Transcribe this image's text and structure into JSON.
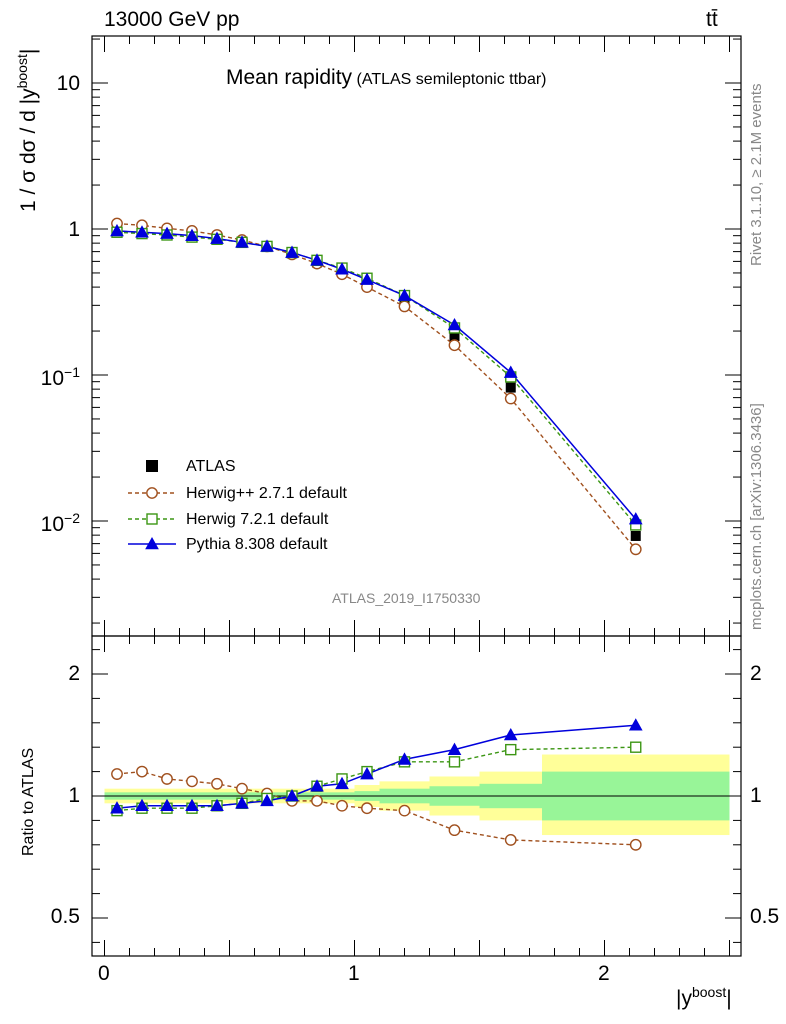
{
  "header": {
    "energy_label": "13000 GeV pp",
    "process_label": "tt̄"
  },
  "right_labels": {
    "rivet": "Rivet 3.1.10, ≥ 2.1M events",
    "source": "mcplots.cern.ch [arXiv:1306.3436]"
  },
  "main_title": {
    "title": "Mean rapidity",
    "subtitle": "(ATLAS semileptonic ttbar)"
  },
  "analysis_id": "ATLAS_2019_I1750330",
  "axes": {
    "ylabel_top_main": "1 / σ dσ / d |y",
    "ylabel_top_sup": "boost",
    "ylabel_top_end": "|",
    "ylabel_bottom": "Ratio to ATLAS",
    "xlabel_main": "|y",
    "xlabel_sup": "boost",
    "xlabel_end": "|",
    "top_ticks": [
      {
        "v": 10,
        "label": "10"
      },
      {
        "v": 1,
        "label": "1"
      },
      {
        "v": 0.1,
        "label": "10",
        "exp": "−1"
      },
      {
        "v": 0.01,
        "label": "10",
        "exp": "−2"
      }
    ],
    "ratio_ticks": [
      {
        "v": 0.5,
        "label": "0.5"
      },
      {
        "v": 1,
        "label": "1"
      },
      {
        "v": 2,
        "label": "2"
      }
    ],
    "x_ticks": [
      {
        "v": 0,
        "label": "0"
      },
      {
        "v": 1,
        "label": "1"
      },
      {
        "v": 2,
        "label": "2"
      }
    ]
  },
  "legend": [
    {
      "label": "ATLAS",
      "key": "atlas"
    },
    {
      "label": "Herwig++ 2.7.1 default",
      "key": "herwigpp"
    },
    {
      "label": "Herwig 7.2.1 default",
      "key": "herwig7"
    },
    {
      "label": "Pythia 8.308 default",
      "key": "pythia"
    }
  ],
  "colors": {
    "atlas": "#000000",
    "herwigpp": "#a0501e",
    "herwig7": "#3c9614",
    "pythia": "#0000dc",
    "band_inner": "#98f598",
    "band_outer": "#ffff99"
  },
  "chart_data": {
    "type": "line",
    "x_scale": "linear",
    "y_scale_top": "log",
    "xlim": [
      -0.1,
      2.5
    ],
    "ylim_top": [
      0.0013,
      22
    ],
    "ylim_ratio": [
      0.4,
      2.3
    ],
    "bins": [
      [
        0,
        0.1
      ],
      [
        0.1,
        0.2
      ],
      [
        0.2,
        0.3
      ],
      [
        0.3,
        0.4
      ],
      [
        0.4,
        0.5
      ],
      [
        0.5,
        0.6
      ],
      [
        0.6,
        0.7
      ],
      [
        0.7,
        0.8
      ],
      [
        0.8,
        0.9
      ],
      [
        0.9,
        1.0
      ],
      [
        1.0,
        1.1
      ],
      [
        1.1,
        1.3
      ],
      [
        1.3,
        1.5
      ],
      [
        1.5,
        1.75
      ],
      [
        1.75,
        2.5
      ]
    ],
    "x": [
      0.05,
      0.15,
      0.25,
      0.35,
      0.45,
      0.55,
      0.65,
      0.75,
      0.85,
      0.95,
      1.05,
      1.2,
      1.4,
      1.625,
      2.125
    ],
    "series": [
      {
        "name": "ATLAS",
        "key": "atlas",
        "values": [
          0.99,
          0.96,
          0.94,
          0.91,
          0.87,
          0.82,
          0.76,
          0.68,
          0.59,
          0.51,
          0.42,
          0.31,
          0.185,
          0.082,
          0.0079
        ]
      },
      {
        "name": "Herwig++ 2.7.1 default",
        "key": "herwigpp",
        "values": [
          1.09,
          1.06,
          1.01,
          0.97,
          0.91,
          0.84,
          0.76,
          0.67,
          0.58,
          0.49,
          0.4,
          0.295,
          0.16,
          0.069,
          0.0064
        ],
        "ratio": [
          1.09,
          1.1,
          1.07,
          1.06,
          1.05,
          1.03,
          1.01,
          0.98,
          0.98,
          0.96,
          0.95,
          0.94,
          0.86,
          0.82,
          0.8
        ]
      },
      {
        "name": "Herwig 7.2.1 default",
        "key": "herwig7",
        "values": [
          0.95,
          0.93,
          0.91,
          0.88,
          0.85,
          0.81,
          0.76,
          0.69,
          0.61,
          0.54,
          0.46,
          0.35,
          0.21,
          0.097,
          0.0094
        ],
        "ratio": [
          0.94,
          0.95,
          0.95,
          0.95,
          0.96,
          0.97,
          0.99,
          1.0,
          1.04,
          1.07,
          1.1,
          1.14,
          1.14,
          1.19,
          1.2
        ]
      },
      {
        "name": "Pythia 8.308 default",
        "key": "pythia",
        "values": [
          0.97,
          0.95,
          0.93,
          0.9,
          0.86,
          0.81,
          0.76,
          0.69,
          0.61,
          0.53,
          0.45,
          0.35,
          0.22,
          0.104,
          0.0103
        ],
        "ratio": [
          0.95,
          0.96,
          0.96,
          0.96,
          0.96,
          0.97,
          0.98,
          1.0,
          1.04,
          1.05,
          1.09,
          1.15,
          1.19,
          1.25,
          1.29
        ]
      }
    ],
    "uncertainty_bands": {
      "inner_low": [
        0.985,
        0.985,
        0.985,
        0.985,
        0.985,
        0.985,
        0.985,
        0.985,
        0.985,
        0.985,
        0.98,
        0.97,
        0.96,
        0.95,
        0.9
      ],
      "inner_high": [
        1.015,
        1.015,
        1.015,
        1.015,
        1.015,
        1.015,
        1.015,
        1.015,
        1.015,
        1.015,
        1.02,
        1.03,
        1.04,
        1.05,
        1.1
      ],
      "outer_low": [
        0.97,
        0.97,
        0.97,
        0.97,
        0.97,
        0.97,
        0.97,
        0.97,
        0.97,
        0.97,
        0.955,
        0.94,
        0.92,
        0.9,
        0.84
      ],
      "outer_high": [
        1.03,
        1.03,
        1.03,
        1.03,
        1.03,
        1.03,
        1.03,
        1.03,
        1.03,
        1.03,
        1.045,
        1.06,
        1.08,
        1.1,
        1.17
      ]
    }
  }
}
